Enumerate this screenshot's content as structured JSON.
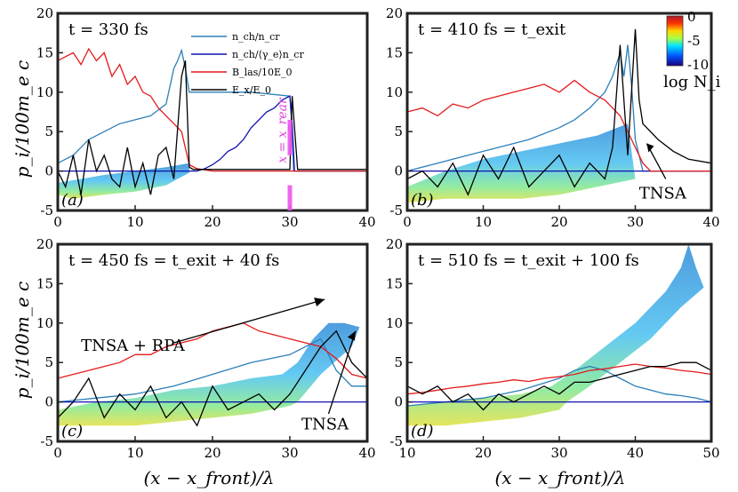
{
  "figure": {
    "ylabel": "p_i/100m_e c",
    "xlabel": "(x − x_front)/λ",
    "colorbar": {
      "label": "log N_i",
      "ticks": [
        "0",
        "-5",
        "-10"
      ]
    }
  },
  "chart_data": [
    {
      "type": "line",
      "panel": "a",
      "panel_label": "(a)",
      "title": "t = 330 fs",
      "xlim": [
        0,
        40
      ],
      "ylim": [
        -5,
        20
      ],
      "xticks": [
        0,
        10,
        20,
        30,
        40
      ],
      "yticks": [
        -5,
        0,
        5,
        10,
        15,
        20
      ],
      "legend": [
        "n_ch/n_cr",
        "n_ch/⟨γ_e⟩n_cr",
        "B_las/10E_0",
        "E_x/E_0"
      ],
      "annotations": [
        "x = x_rear"
      ],
      "series": [
        {
          "name": "n_ch/n_cr",
          "color": "#2b7fb8",
          "x": [
            0,
            2,
            4,
            6,
            8,
            10,
            12,
            14,
            15,
            15.5,
            16,
            16.5,
            17,
            17.5,
            20,
            25,
            30,
            30.3,
            30.5,
            32,
            35,
            40
          ],
          "y": [
            1,
            2,
            4,
            5,
            6,
            6.5,
            7,
            8.5,
            13,
            14,
            15.3,
            13,
            10,
            10,
            10,
            10,
            9.5,
            5,
            0,
            0,
            0,
            0
          ]
        },
        {
          "name": "n_ch/⟨γ_e⟩n_cr",
          "color": "#1010b4",
          "x": [
            0,
            10,
            16,
            17,
            18,
            19,
            20,
            21,
            22,
            23,
            24,
            25,
            26,
            27,
            28,
            29,
            30,
            30.3,
            30.6,
            32,
            40
          ],
          "y": [
            0,
            0,
            0,
            0,
            0,
            0.3,
            0.8,
            1.5,
            2.5,
            3,
            4,
            5.5,
            6.5,
            7.5,
            8,
            9,
            9.5,
            6,
            0,
            0,
            0
          ]
        },
        {
          "name": "B_las/10E_0",
          "color": "#e41a1c",
          "x": [
            0,
            1,
            2,
            3,
            4,
            5,
            6,
            7,
            8,
            9,
            10,
            11,
            12,
            13,
            14,
            15,
            16,
            17,
            18,
            20,
            25,
            30,
            35,
            40
          ],
          "y": [
            14,
            14.5,
            15,
            13.5,
            15.5,
            14,
            15,
            12,
            13.5,
            11,
            12,
            10,
            9.5,
            8,
            7,
            6,
            5,
            0.8,
            0.3,
            0,
            0,
            0,
            0,
            0
          ]
        },
        {
          "name": "E_x/E_0",
          "color": "#000000",
          "x": [
            0,
            1,
            2,
            3,
            4,
            5,
            6,
            7,
            8,
            9,
            10,
            11,
            12,
            13,
            14,
            15,
            16,
            16.5,
            17,
            17.5,
            18,
            25,
            30,
            30.3,
            31,
            40
          ],
          "y": [
            0,
            -2,
            2,
            -3,
            4,
            0,
            2,
            -1,
            -2,
            3,
            -2,
            1,
            -3,
            2,
            3,
            -1,
            12,
            14,
            0.5,
            0.2,
            0.2,
            0.2,
            0.2,
            9.5,
            0.2,
            0.2
          ]
        }
      ]
    },
    {
      "type": "line",
      "panel": "b",
      "panel_label": "(b)",
      "title": "t = 410 fs = t_exit",
      "xlim": [
        0,
        40
      ],
      "ylim": [
        -5,
        20
      ],
      "xticks": [
        0,
        10,
        20,
        30,
        40
      ],
      "yticks": [
        -5,
        0,
        5,
        10,
        15,
        20
      ],
      "annotations": [
        "TNSA"
      ],
      "series": [
        {
          "name": "n_ch/n_cr",
          "color": "#2b7fb8",
          "x": [
            0,
            4,
            8,
            12,
            16,
            20,
            22,
            24,
            25,
            26,
            27,
            28,
            28.5,
            29,
            29.5,
            30,
            31,
            32,
            40
          ],
          "y": [
            0,
            1,
            2,
            3,
            4,
            5.5,
            6.5,
            8,
            9,
            10,
            12,
            15,
            12,
            16,
            11,
            4,
            0,
            0,
            0
          ]
        },
        {
          "name": "n_ch/⟨γ_e⟩n_cr",
          "color": "#1010b4",
          "x": [
            0,
            40
          ],
          "y": [
            0,
            0
          ]
        },
        {
          "name": "B_las/10E_0",
          "color": "#e41a1c",
          "x": [
            0,
            2,
            4,
            6,
            8,
            10,
            12,
            14,
            16,
            18,
            20,
            22,
            24,
            26,
            27,
            28,
            29,
            30,
            31,
            32,
            40
          ],
          "y": [
            7.5,
            8,
            7,
            8.5,
            8,
            9,
            9.5,
            10,
            10.5,
            11,
            10,
            11.5,
            10,
            9,
            8,
            7,
            5,
            3,
            1,
            0,
            0
          ]
        },
        {
          "name": "E_x/E_0",
          "color": "#000000",
          "x": [
            0,
            2,
            4,
            6,
            8,
            10,
            12,
            14,
            16,
            18,
            20,
            22,
            24,
            26,
            27,
            28,
            29,
            30,
            30.5,
            31,
            33,
            35,
            37,
            40
          ],
          "y": [
            -1,
            0,
            -2,
            1,
            -3,
            2,
            -1,
            3,
            -2,
            0,
            2,
            -2,
            1,
            -1,
            3,
            16,
            2,
            18,
            9,
            6,
            4,
            2.5,
            1.5,
            1
          ]
        }
      ]
    },
    {
      "type": "line",
      "panel": "c",
      "panel_label": "(c)",
      "title": "t = 450 fs = t_exit + 40 fs",
      "xlim": [
        0,
        40
      ],
      "ylim": [
        -5,
        20
      ],
      "xticks": [
        0,
        10,
        20,
        30,
        40
      ],
      "yticks": [
        -5,
        0,
        5,
        10,
        15,
        20
      ],
      "annotations": [
        "TNSA + RPA",
        "TNSA"
      ],
      "series": [
        {
          "name": "n_ch/n_cr",
          "color": "#2b7fb8",
          "x": [
            0,
            5,
            10,
            15,
            20,
            25,
            30,
            32,
            34,
            35,
            36,
            37,
            38,
            40
          ],
          "y": [
            0,
            0.5,
            1,
            2,
            3.5,
            5,
            6,
            7,
            8,
            6,
            4,
            3,
            2,
            2
          ]
        },
        {
          "name": "n_ch/⟨γ_e⟩n_cr",
          "color": "#1010b4",
          "x": [
            0,
            40
          ],
          "y": [
            0,
            0
          ]
        },
        {
          "name": "B_las/10E_0",
          "color": "#e41a1c",
          "x": [
            0,
            2,
            4,
            6,
            8,
            10,
            12,
            14,
            16,
            18,
            20,
            22,
            24,
            26,
            28,
            30,
            32,
            34,
            36,
            38,
            40
          ],
          "y": [
            3,
            3.5,
            4,
            4.5,
            5,
            6,
            6,
            7,
            7.5,
            8,
            9,
            9.5,
            10,
            9,
            8.5,
            8,
            7.5,
            7,
            5.5,
            3.5,
            3
          ]
        },
        {
          "name": "E_x/E_0",
          "color": "#000000",
          "x": [
            0,
            2,
            4,
            6,
            8,
            10,
            12,
            14,
            16,
            18,
            20,
            22,
            24,
            26,
            28,
            30,
            32,
            34,
            36,
            38,
            40
          ],
          "y": [
            -2,
            0,
            3,
            -2,
            1,
            -1,
            2,
            -2,
            0,
            -3,
            2,
            -1,
            0,
            1,
            -1,
            1,
            4,
            7,
            9,
            5,
            3
          ]
        }
      ]
    },
    {
      "type": "line",
      "panel": "d",
      "panel_label": "(d)",
      "title": "t = 510 fs = t_exit + 100 fs",
      "xlim": [
        10,
        50
      ],
      "ylim": [
        -5,
        20
      ],
      "xticks": [
        10,
        20,
        30,
        40,
        50
      ],
      "yticks": [
        -5,
        0,
        5,
        10,
        15,
        20
      ],
      "series": [
        {
          "name": "n_ch/n_cr",
          "color": "#2b7fb8",
          "x": [
            10,
            15,
            20,
            25,
            30,
            32,
            34,
            36,
            38,
            40,
            42,
            44,
            46,
            48,
            50
          ],
          "y": [
            -0.5,
            0,
            0.5,
            1.5,
            3,
            4,
            4.5,
            4,
            3,
            2,
            1.5,
            1,
            0.8,
            0.5,
            0
          ]
        },
        {
          "name": "n_ch/⟨γ_e⟩n_cr",
          "color": "#1010b4",
          "x": [
            10,
            50
          ],
          "y": [
            0,
            0
          ]
        },
        {
          "name": "B_las/10E_0",
          "color": "#e41a1c",
          "x": [
            10,
            12,
            14,
            16,
            18,
            20,
            22,
            24,
            26,
            28,
            30,
            32,
            34,
            36,
            38,
            40,
            42,
            44,
            46,
            48,
            50
          ],
          "y": [
            1,
            1.2,
            1.5,
            1.8,
            2,
            2.3,
            2.5,
            2.8,
            2.6,
            3,
            3.2,
            3.5,
            4,
            4.2,
            4.5,
            4.8,
            4.5,
            4.3,
            4,
            3.8,
            3.5
          ]
        },
        {
          "name": "E_x/E_0",
          "color": "#000000",
          "x": [
            10,
            12,
            14,
            16,
            18,
            20,
            22,
            24,
            26,
            28,
            30,
            32,
            34,
            36,
            38,
            40,
            42,
            44,
            46,
            48,
            50
          ],
          "y": [
            2,
            1,
            2,
            0,
            1,
            -1,
            1,
            0,
            1,
            2,
            1,
            2.5,
            2.5,
            3,
            3.5,
            4,
            4.5,
            4.5,
            5,
            5,
            4
          ]
        }
      ]
    }
  ]
}
